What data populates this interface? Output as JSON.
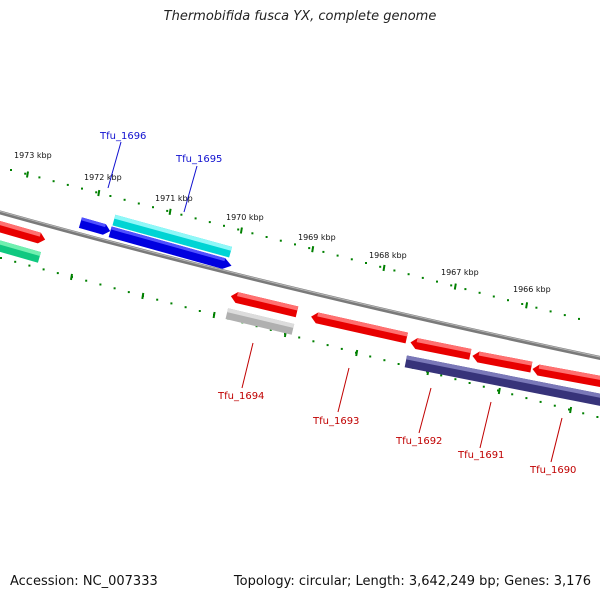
{
  "title": "Thermobifida fusca YX, complete genome",
  "footer": {
    "accession": "Accession: NC_007333",
    "stats": "Topology: circular; Length: 3,642,249 bp; Genes: 3,176"
  },
  "colors": {
    "forward_label": "#1010d0",
    "reverse_label": "#c00000",
    "backbone": "#808080",
    "ticks": "#008000",
    "red": "#ff1a1a",
    "blue": "#1010ee",
    "cyan": "#22f0f0",
    "green": "#20d890",
    "gray": "#b8b8b8",
    "navy": "#3c3880"
  },
  "scale": {
    "labels": [
      "1973 kbp",
      "1972 kbp",
      "1971 kbp",
      "1970 kbp",
      "1969 kbp",
      "1968 kbp",
      "1967 kbp",
      "1966 kbp"
    ]
  },
  "genes": [
    {
      "id": "Tfu_1696",
      "label": "Tfu_1696",
      "strand": "forward"
    },
    {
      "id": "Tfu_1695",
      "label": "Tfu_1695",
      "strand": "forward"
    },
    {
      "id": "Tfu_1694",
      "label": "Tfu_1694",
      "strand": "reverse"
    },
    {
      "id": "Tfu_1693",
      "label": "Tfu_1693",
      "strand": "reverse"
    },
    {
      "id": "Tfu_1692",
      "label": "Tfu_1692",
      "strand": "reverse"
    },
    {
      "id": "Tfu_1691",
      "label": "Tfu_1691",
      "strand": "reverse"
    },
    {
      "id": "Tfu_1690",
      "label": "Tfu_1690",
      "strand": "reverse"
    }
  ]
}
